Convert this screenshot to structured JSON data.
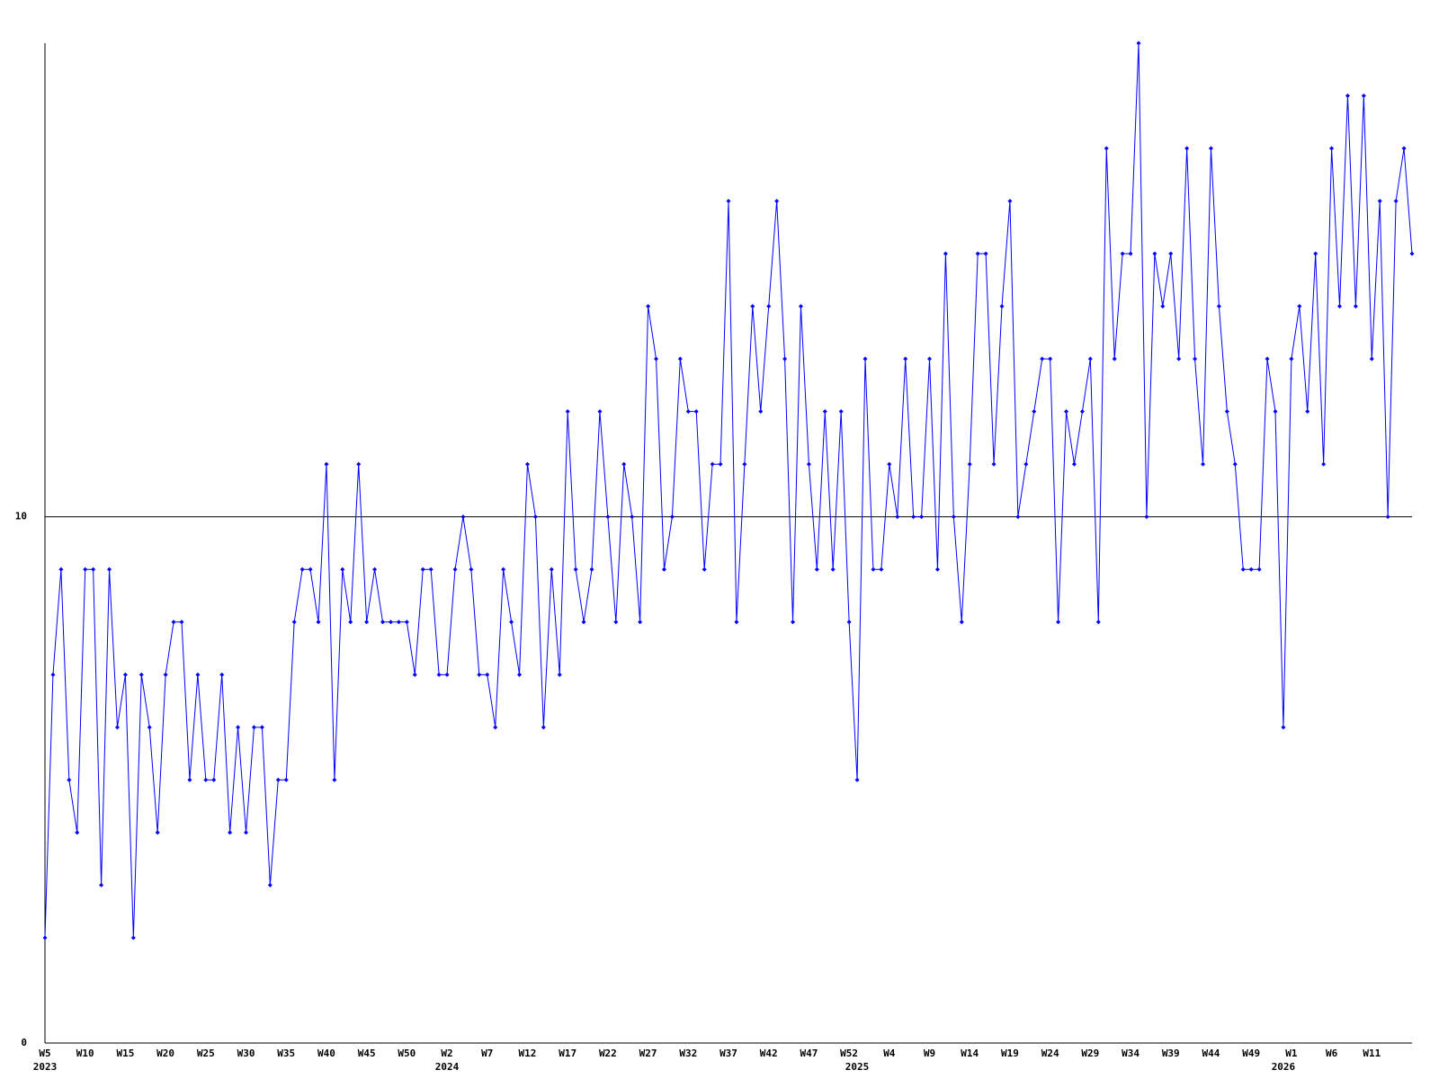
{
  "chart_data": {
    "type": "line",
    "categories": [
      "W5",
      null,
      null,
      null,
      null,
      "W10",
      null,
      null,
      null,
      null,
      "W15",
      null,
      null,
      null,
      null,
      "W20",
      null,
      null,
      null,
      null,
      "W25",
      null,
      null,
      null,
      null,
      "W30",
      null,
      null,
      null,
      null,
      "W35",
      null,
      null,
      null,
      null,
      "W40",
      null,
      null,
      null,
      null,
      "W45",
      null,
      null,
      null,
      null,
      "W50",
      null,
      null,
      null,
      null,
      "W2",
      null,
      null,
      null,
      null,
      "W7",
      null,
      null,
      null,
      null,
      "W12",
      null,
      null,
      null,
      null,
      "W17",
      null,
      null,
      null,
      null,
      "W22",
      null,
      null,
      null,
      null,
      "W27",
      null,
      null,
      null,
      null,
      "W32",
      null,
      null,
      null,
      null,
      "W37",
      null,
      null,
      null,
      null,
      "W42",
      null,
      null,
      null,
      null,
      "W47",
      null,
      null,
      null,
      null,
      "W52",
      null,
      null,
      null,
      null,
      "W4",
      null,
      null,
      null,
      null,
      "W9",
      null,
      null,
      null,
      null,
      "W14",
      null,
      null,
      null,
      null,
      "W19",
      null,
      null,
      null,
      null,
      "W24",
      null,
      null,
      null,
      null,
      "W29",
      null,
      null,
      null,
      null,
      "W34",
      null,
      null,
      null,
      null,
      "W39",
      null,
      null,
      null,
      null,
      "W44",
      null,
      null,
      null,
      null,
      "W49",
      null,
      null,
      null,
      null,
      "W1",
      null,
      null,
      null,
      null,
      "W6",
      null,
      null,
      null,
      null,
      "W11",
      null,
      null,
      null,
      null,
      null
    ],
    "years": [
      "2023",
      null,
      null,
      null,
      null,
      null,
      null,
      null,
      null,
      null,
      null,
      null,
      null,
      null,
      null,
      null,
      null,
      null,
      null,
      null,
      null,
      null,
      null,
      null,
      null,
      null,
      null,
      null,
      null,
      null,
      null,
      null,
      null,
      null,
      null,
      null,
      null,
      null,
      null,
      null,
      null,
      null,
      null,
      null,
      null,
      null,
      null,
      null,
      null,
      null,
      "2024",
      null,
      null,
      null,
      null,
      null,
      null,
      null,
      null,
      null,
      null,
      null,
      null,
      null,
      null,
      null,
      null,
      null,
      null,
      null,
      null,
      null,
      null,
      null,
      null,
      null,
      null,
      null,
      null,
      null,
      null,
      null,
      null,
      null,
      null,
      null,
      null,
      null,
      null,
      null,
      null,
      null,
      null,
      null,
      null,
      null,
      null,
      null,
      null,
      null,
      null,
      "2025",
      null,
      null,
      null,
      null,
      null,
      null,
      null,
      null,
      null,
      null,
      null,
      null,
      null,
      null,
      null,
      null,
      null,
      null,
      null,
      null,
      null,
      null,
      null,
      null,
      null,
      null,
      null,
      null,
      null,
      null,
      null,
      null,
      null,
      null,
      null,
      null,
      null,
      null,
      null,
      null,
      null,
      null,
      null,
      null,
      null,
      null,
      null,
      null,
      null,
      null,
      null,
      null,
      "2026",
      null,
      null,
      null,
      null,
      null,
      null,
      null,
      null,
      null,
      null,
      null,
      null,
      null,
      null,
      null
    ],
    "values": [
      2,
      7,
      9,
      5,
      4,
      9,
      9,
      3,
      9,
      6,
      7,
      2,
      7,
      6,
      4,
      7,
      8,
      8,
      5,
      7,
      5,
      5,
      7,
      4,
      6,
      4,
      6,
      6,
      3,
      5,
      5,
      8,
      9,
      9,
      8,
      11,
      5,
      9,
      8,
      11,
      8,
      9,
      8,
      8,
      8,
      8,
      7,
      9,
      9,
      7,
      7,
      9,
      10,
      9,
      7,
      7,
      6,
      9,
      8,
      7,
      11,
      10,
      6,
      9,
      7,
      12,
      9,
      8,
      9,
      12,
      10,
      8,
      11,
      10,
      8,
      14,
      13,
      9,
      10,
      13,
      12,
      12,
      9,
      11,
      11,
      16,
      8,
      11,
      14,
      12,
      14,
      16,
      13,
      8,
      14,
      11,
      9,
      12,
      9,
      12,
      8,
      5,
      13,
      9,
      9,
      11,
      10,
      13,
      10,
      10,
      13,
      9,
      15,
      10,
      8,
      11,
      15,
      15,
      11,
      14,
      16,
      10,
      11,
      12,
      13,
      13,
      8,
      12,
      11,
      12,
      13,
      8,
      17,
      13,
      15,
      15,
      19,
      10,
      15,
      14,
      15,
      13,
      17,
      13,
      11,
      17,
      14,
      12,
      11,
      9,
      9,
      9,
      13,
      12,
      6,
      13,
      14,
      12,
      15,
      11,
      17,
      14,
      18,
      14,
      18,
      13,
      16,
      10,
      16,
      17,
      15
    ],
    "color": "#0000ff",
    "ylim": [
      0,
      19
    ],
    "yticks": [
      0,
      10
    ],
    "grid": true
  }
}
